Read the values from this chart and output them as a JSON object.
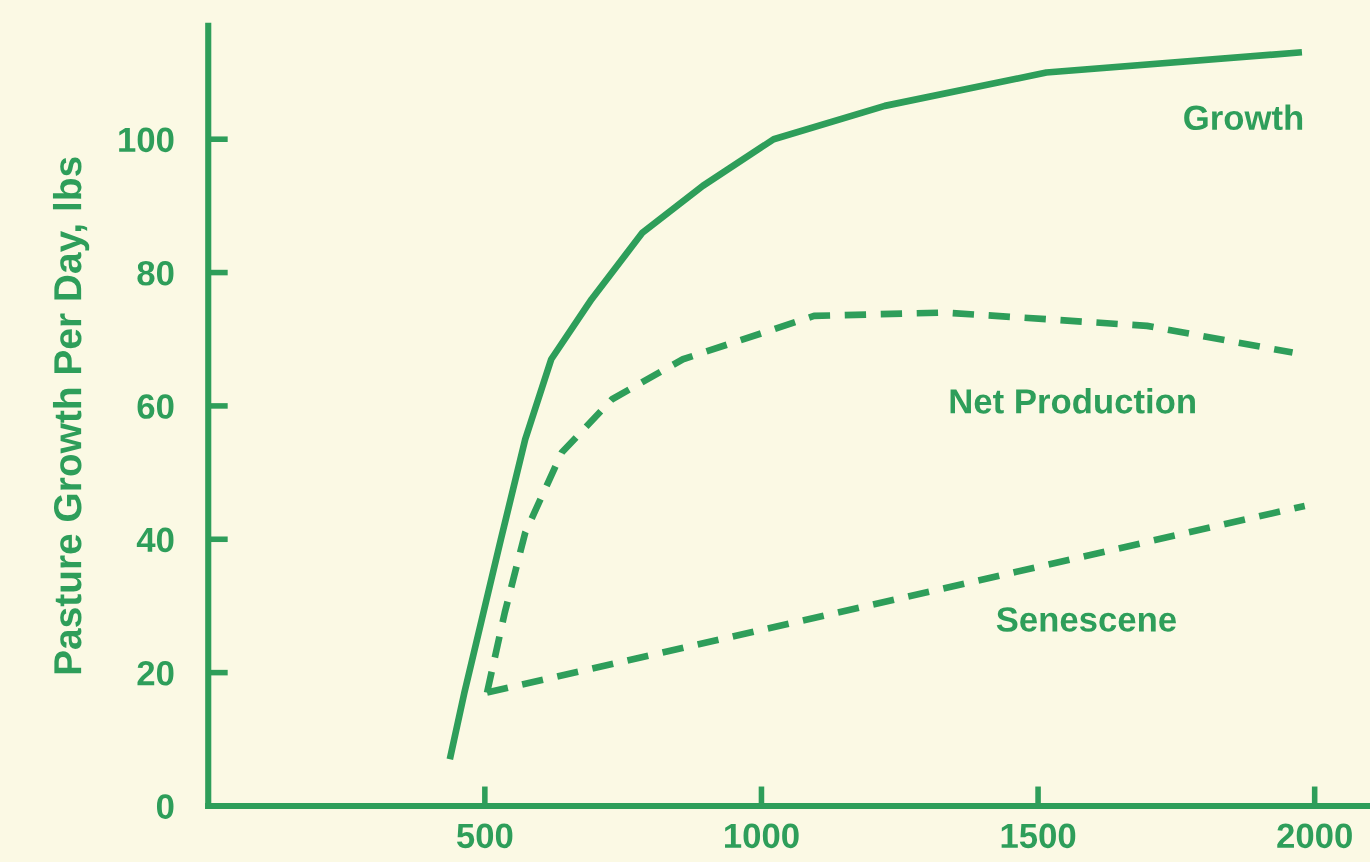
{
  "chart_data": {
    "type": "line",
    "ylabel": "Pasture Growth Per Day, lbs",
    "xlim": [
      0,
      2100
    ],
    "xticks": [
      500,
      1000,
      1500,
      2000
    ],
    "ylim": [
      0,
      117
    ],
    "yticks": [
      0,
      20,
      40,
      60,
      80,
      100
    ],
    "grid": false,
    "legend": false,
    "marker": "none",
    "series": [
      {
        "name": "Growth",
        "color": "#2e9e5a",
        "line_style": "solid",
        "x": [
          438,
          463,
          529,
          573,
          620,
          693,
          785,
          894,
          1022,
          1223,
          1515,
          1971
        ],
        "values": [
          7.5,
          17,
          40,
          55,
          67,
          76,
          86,
          93,
          100,
          105,
          110,
          113
        ]
      },
      {
        "name": "Net Production",
        "color": "#2e9e5a",
        "line_style": "dashed",
        "x": [
          504,
          536,
          573,
          639,
          730,
          858,
          1004,
          1095,
          1332,
          1515,
          1697,
          1960
        ],
        "values": [
          17,
          29,
          41,
          53,
          61,
          67,
          71,
          73.5,
          74,
          73,
          72,
          68
        ]
      },
      {
        "name": "Senescene",
        "color": "#2e9e5a",
        "line_style": "dashed",
        "x": [
          504,
          1982
        ],
        "values": [
          17,
          45
        ]
      }
    ]
  }
}
